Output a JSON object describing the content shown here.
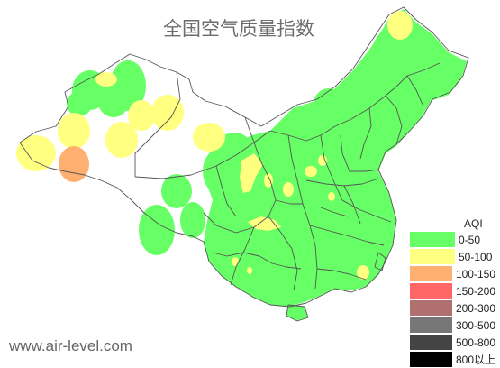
{
  "title": "全国空气质量指数",
  "legend": {
    "title": "AQI",
    "items": [
      {
        "label": "0-50",
        "color": "#66ff66"
      },
      {
        "label": "50-100",
        "color": "#ffff80"
      },
      {
        "label": "100-150",
        "color": "#ffb070"
      },
      {
        "label": "150-200",
        "color": "#ff6666"
      },
      {
        "label": "200-300",
        "color": "#b07070"
      },
      {
        "label": "300-500",
        "color": "#777777"
      },
      {
        "label": "500-800",
        "color": "#444444"
      },
      {
        "label": "800以上",
        "color": "#000000"
      }
    ]
  },
  "watermark": "www.air-level.com",
  "colors": {
    "good": "#66ff66",
    "moderate": "#ffff80",
    "unhealthy_sensitive": "#ffb070",
    "border": "#555555"
  }
}
